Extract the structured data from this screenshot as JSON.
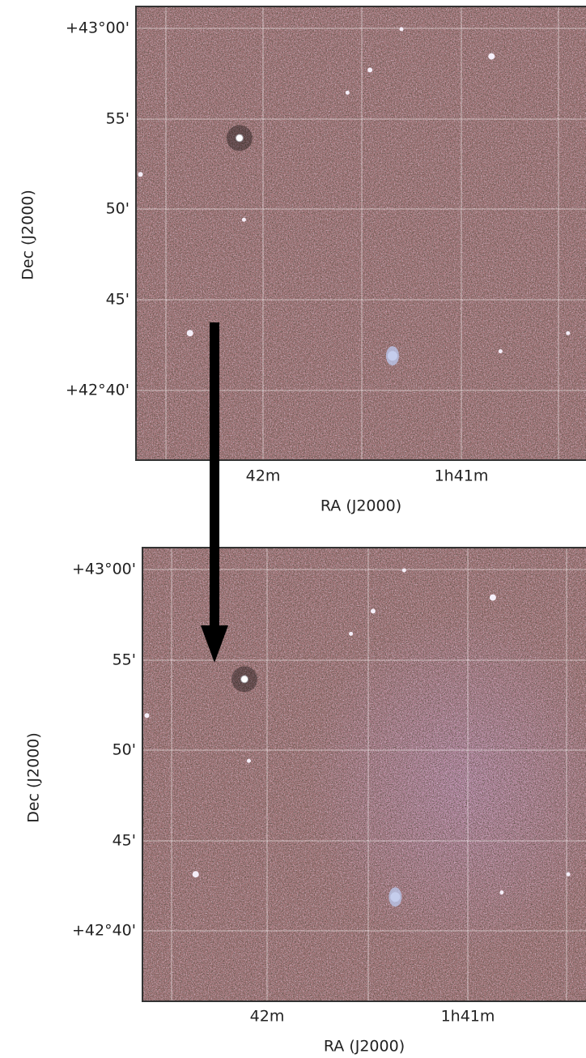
{
  "panels": [
    {
      "y_ticks": [
        "+43°00'",
        "55'",
        "50'",
        "45'",
        "+42°40'"
      ],
      "x_ticks": [
        "42m",
        "1h41m"
      ],
      "x_label": "RA (J2000)",
      "y_label": "Dec (J2000)"
    },
    {
      "y_ticks": [
        "+43°00'",
        "55'",
        "50'",
        "45'",
        "+42°40'"
      ],
      "x_ticks": [
        "42m",
        "1h41m"
      ],
      "x_label": "RA (J2000)",
      "y_label": "Dec (J2000)"
    }
  ]
}
